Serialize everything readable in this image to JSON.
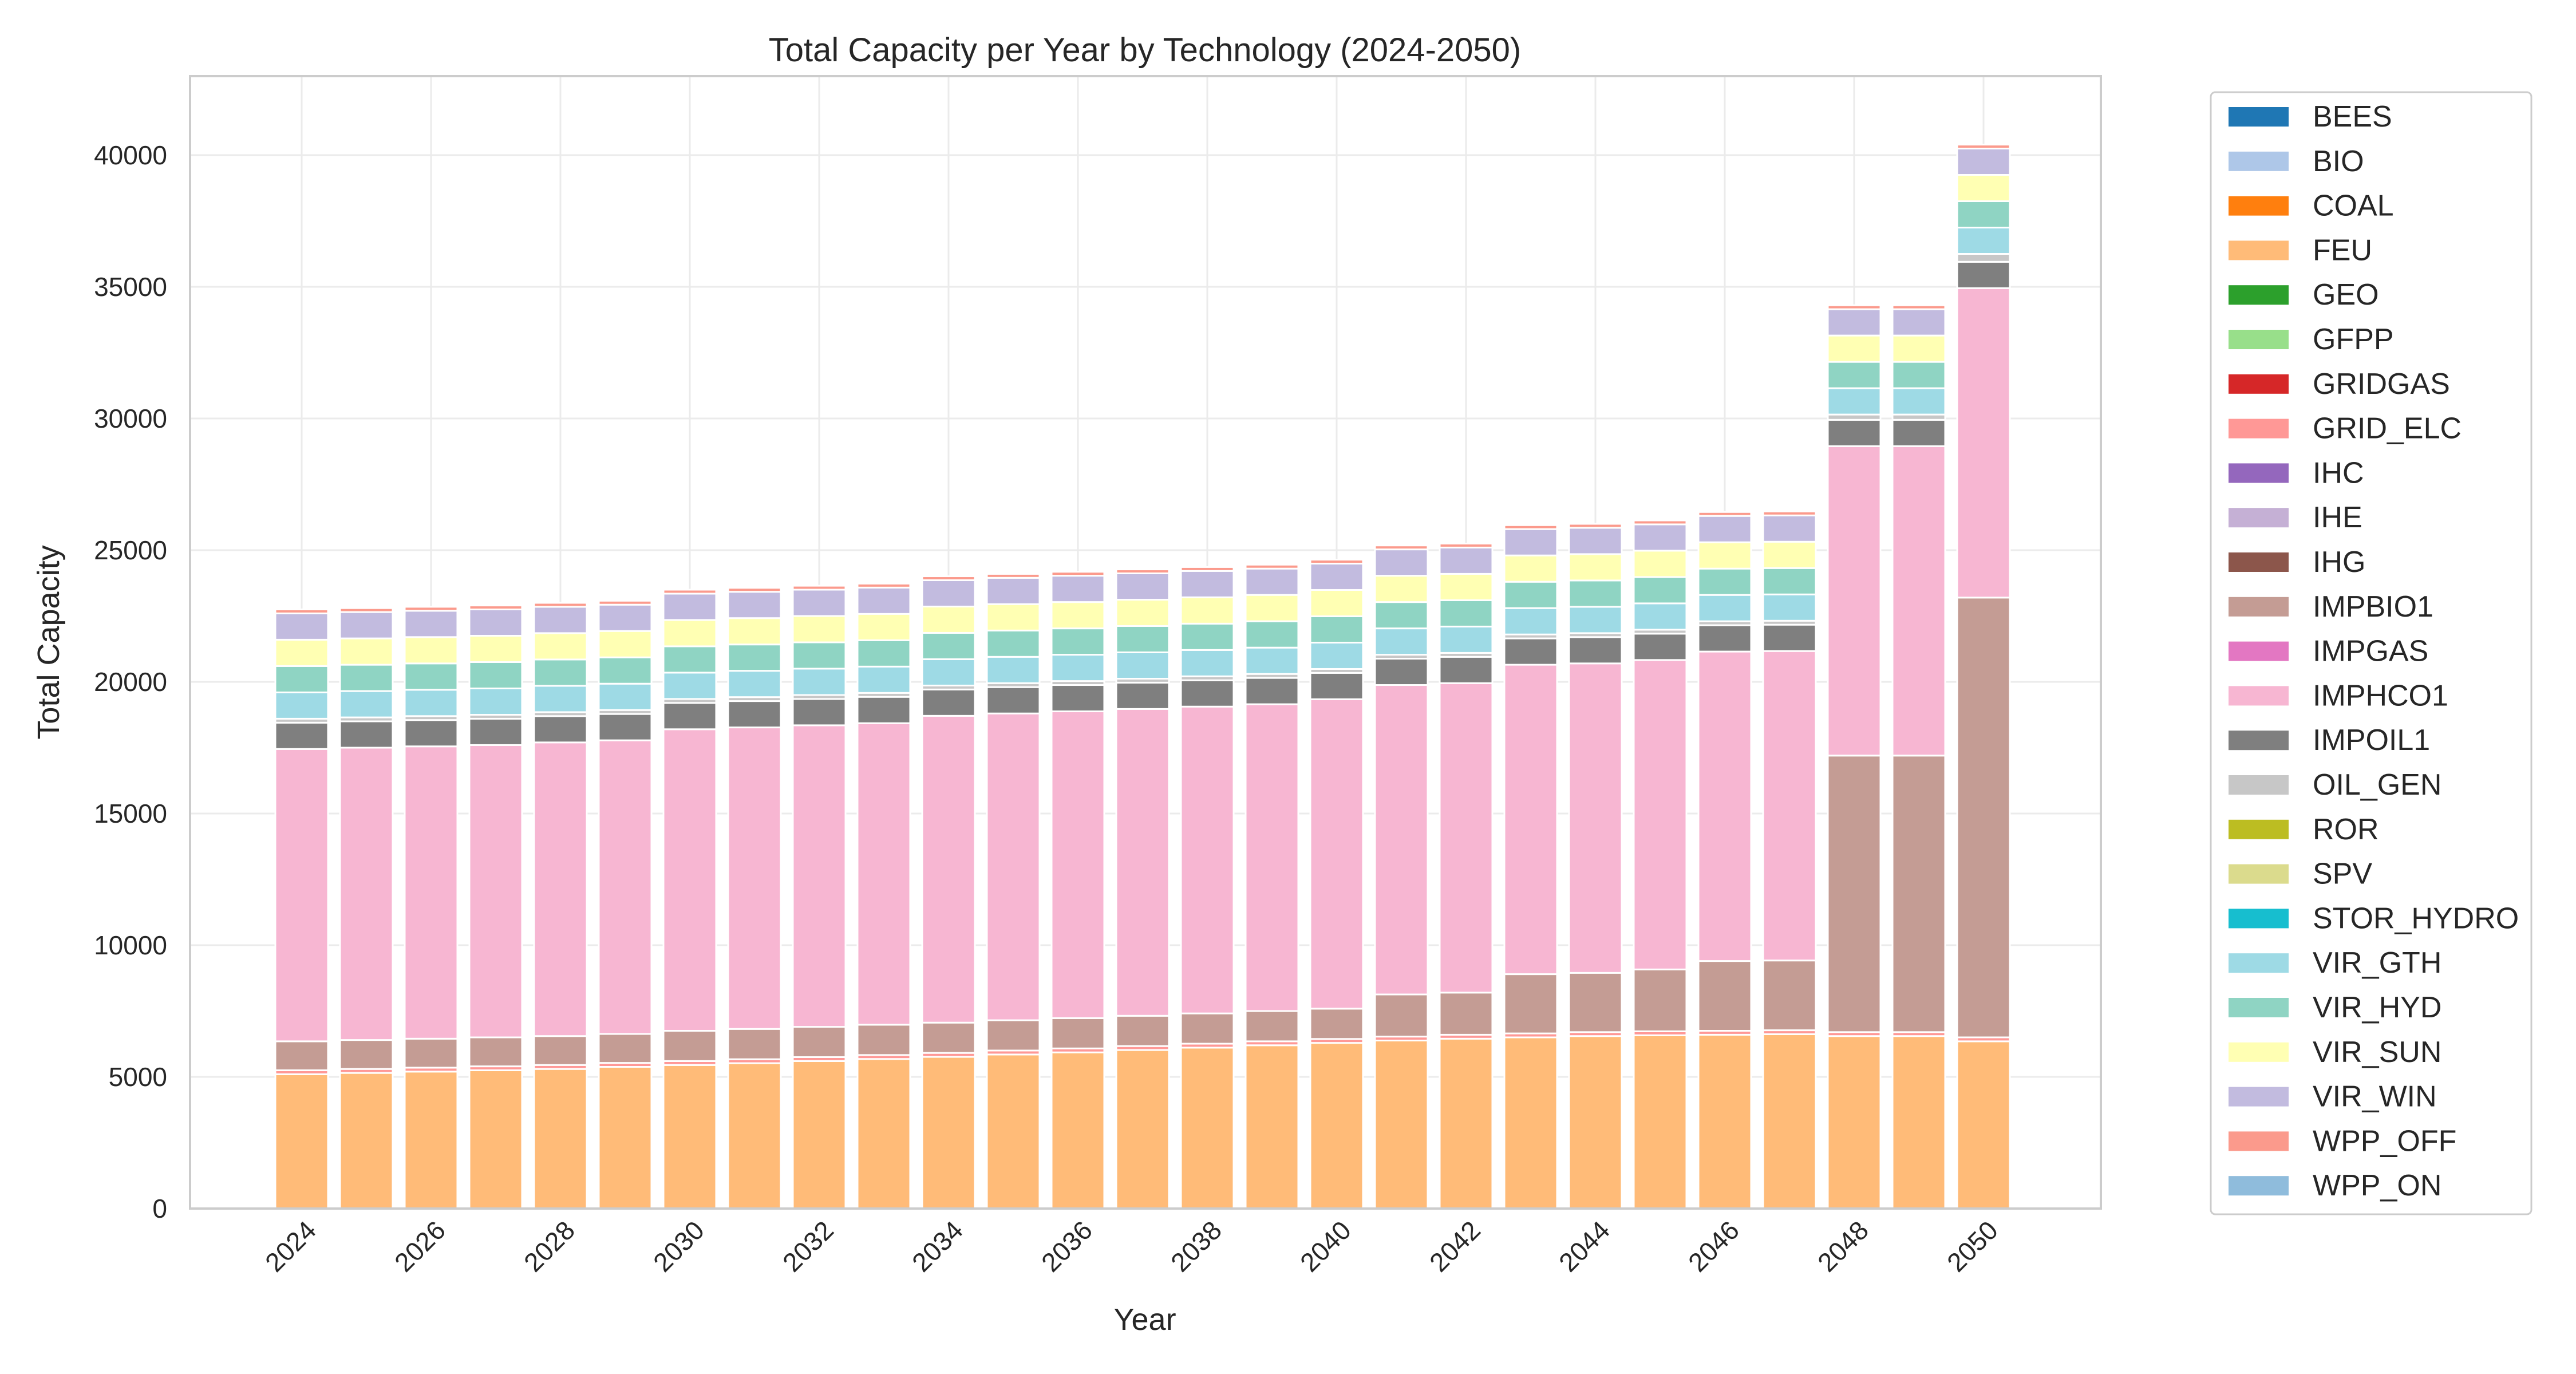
{
  "chart_data": {
    "type": "bar",
    "stacked": true,
    "title": "Total Capacity per Year by Technology (2024-2050)",
    "xlabel": "Year",
    "ylabel": "Total Capacity",
    "ylim": [
      0,
      43000
    ],
    "yticks": [
      0,
      5000,
      10000,
      15000,
      20000,
      25000,
      30000,
      35000,
      40000
    ],
    "xtick_labels": [
      "2024",
      "2026",
      "2028",
      "2030",
      "2032",
      "2034",
      "2036",
      "2038",
      "2040",
      "2042",
      "2044",
      "2046",
      "2048",
      "2050"
    ],
    "grid": true,
    "legend_position": "outside-right",
    "categories": [
      2024,
      2025,
      2026,
      2027,
      2028,
      2029,
      2030,
      2031,
      2032,
      2033,
      2034,
      2035,
      2036,
      2037,
      2038,
      2039,
      2040,
      2041,
      2042,
      2043,
      2044,
      2045,
      2046,
      2047,
      2048,
      2049,
      2050
    ],
    "series": [
      {
        "name": "BEES",
        "color": "#1f77b4",
        "values": [
          0,
          0,
          0,
          0,
          0,
          0,
          0,
          0,
          0,
          0,
          0,
          0,
          0,
          0,
          0,
          0,
          0,
          0,
          0,
          0,
          0,
          0,
          0,
          0,
          0,
          0,
          0
        ]
      },
      {
        "name": "BIO",
        "color": "#aec7e8",
        "values": [
          0,
          0,
          0,
          0,
          0,
          0,
          0,
          0,
          0,
          0,
          0,
          0,
          0,
          0,
          0,
          0,
          0,
          0,
          0,
          0,
          0,
          0,
          0,
          0,
          0,
          0,
          0
        ]
      },
      {
        "name": "COAL",
        "color": "#ff7f0e",
        "values": [
          0,
          0,
          0,
          0,
          0,
          0,
          0,
          0,
          0,
          0,
          0,
          0,
          0,
          0,
          0,
          0,
          0,
          0,
          0,
          0,
          0,
          0,
          0,
          0,
          0,
          0,
          0
        ]
      },
      {
        "name": "FEU",
        "color": "#ffbb78",
        "values": [
          5100,
          5150,
          5200,
          5250,
          5300,
          5380,
          5450,
          5520,
          5600,
          5680,
          5760,
          5850,
          5930,
          6020,
          6110,
          6200,
          6290,
          6380,
          6450,
          6500,
          6550,
          6580,
          6600,
          6620,
          6550,
          6550,
          6350
        ]
      },
      {
        "name": "GEO",
        "color": "#2ca02c",
        "values": [
          0,
          0,
          0,
          0,
          0,
          0,
          0,
          0,
          0,
          0,
          0,
          0,
          0,
          0,
          0,
          0,
          0,
          0,
          0,
          0,
          0,
          0,
          0,
          0,
          0,
          0,
          0
        ]
      },
      {
        "name": "GFPP",
        "color": "#98df8a",
        "values": [
          0,
          0,
          0,
          0,
          0,
          0,
          0,
          0,
          0,
          0,
          0,
          0,
          0,
          0,
          0,
          0,
          0,
          0,
          0,
          0,
          0,
          0,
          0,
          0,
          0,
          0,
          0
        ]
      },
      {
        "name": "GRIDGAS",
        "color": "#d62728",
        "values": [
          0,
          0,
          0,
          0,
          0,
          0,
          0,
          0,
          0,
          0,
          0,
          0,
          0,
          0,
          0,
          0,
          0,
          0,
          0,
          0,
          0,
          0,
          0,
          0,
          0,
          0,
          0
        ]
      },
      {
        "name": "GRID_ELC",
        "color": "#ff9896",
        "values": [
          150,
          150,
          150,
          150,
          150,
          150,
          150,
          150,
          150,
          150,
          150,
          150,
          150,
          150,
          150,
          150,
          150,
          150,
          150,
          150,
          150,
          150,
          150,
          150,
          150,
          150,
          150
        ]
      },
      {
        "name": "IHC",
        "color": "#9467bd",
        "values": [
          0,
          0,
          0,
          0,
          0,
          0,
          0,
          0,
          0,
          0,
          0,
          0,
          0,
          0,
          0,
          0,
          0,
          0,
          0,
          0,
          0,
          0,
          0,
          0,
          0,
          0,
          0
        ]
      },
      {
        "name": "IHE",
        "color": "#c5b0d5",
        "values": [
          0,
          0,
          0,
          0,
          0,
          0,
          0,
          0,
          0,
          0,
          0,
          0,
          0,
          0,
          0,
          0,
          0,
          0,
          0,
          0,
          0,
          0,
          0,
          0,
          0,
          0,
          0
        ]
      },
      {
        "name": "IHG",
        "color": "#8c564b",
        "values": [
          0,
          0,
          0,
          0,
          0,
          0,
          0,
          0,
          0,
          0,
          0,
          0,
          0,
          0,
          0,
          0,
          0,
          0,
          0,
          0,
          0,
          0,
          0,
          0,
          0,
          0,
          0
        ]
      },
      {
        "name": "IMPBIO1",
        "color": "#c49c94",
        "values": [
          1100,
          1100,
          1100,
          1100,
          1100,
          1100,
          1150,
          1150,
          1150,
          1150,
          1150,
          1150,
          1150,
          1150,
          1150,
          1150,
          1150,
          1600,
          1600,
          2250,
          2250,
          2350,
          2650,
          2650,
          10500,
          10500,
          16700
        ]
      },
      {
        "name": "IMPGAS",
        "color": "#e377c2",
        "values": [
          0,
          0,
          0,
          0,
          0,
          0,
          0,
          0,
          0,
          0,
          0,
          0,
          0,
          0,
          0,
          0,
          0,
          0,
          0,
          0,
          0,
          0,
          0,
          0,
          0,
          0,
          0
        ]
      },
      {
        "name": "IMPHCO1",
        "color": "#f7b6d2",
        "values": [
          11100,
          11100,
          11100,
          11100,
          11150,
          11150,
          11450,
          11450,
          11450,
          11450,
          11650,
          11650,
          11650,
          11650,
          11650,
          11650,
          11750,
          11750,
          11750,
          11750,
          11750,
          11750,
          11750,
          11750,
          11750,
          11750,
          11750
        ]
      },
      {
        "name": "IMPOIL1",
        "color": "#7f7f7f",
        "values": [
          1000,
          1000,
          1000,
          1000,
          1000,
          1000,
          1000,
          1000,
          1000,
          1000,
          1000,
          1000,
          1000,
          1000,
          1000,
          1000,
          1000,
          1000,
          1000,
          1000,
          1000,
          1000,
          1000,
          1000,
          1000,
          1000,
          1000
        ]
      },
      {
        "name": "OIL_GEN",
        "color": "#c7c7c7",
        "values": [
          150,
          150,
          150,
          150,
          150,
          150,
          150,
          150,
          150,
          150,
          150,
          150,
          150,
          150,
          150,
          150,
          150,
          150,
          150,
          150,
          150,
          150,
          150,
          150,
          200,
          200,
          300
        ]
      },
      {
        "name": "ROR",
        "color": "#bcbd22",
        "values": [
          0,
          0,
          0,
          0,
          0,
          0,
          0,
          0,
          0,
          0,
          0,
          0,
          0,
          0,
          0,
          0,
          0,
          0,
          0,
          0,
          0,
          0,
          0,
          0,
          0,
          0,
          0
        ]
      },
      {
        "name": "SPV",
        "color": "#dbdb8d",
        "values": [
          0,
          0,
          0,
          0,
          0,
          0,
          0,
          0,
          0,
          0,
          0,
          0,
          0,
          0,
          0,
          0,
          0,
          0,
          0,
          0,
          0,
          0,
          0,
          0,
          0,
          0,
          0
        ]
      },
      {
        "name": "STOR_HYDRO",
        "color": "#17becf",
        "values": [
          0,
          0,
          0,
          0,
          0,
          0,
          0,
          0,
          0,
          0,
          0,
          0,
          0,
          0,
          0,
          0,
          0,
          0,
          0,
          0,
          0,
          0,
          0,
          0,
          0,
          0,
          0
        ]
      },
      {
        "name": "VIR_GTH",
        "color": "#9edae5",
        "values": [
          1000,
          1000,
          1000,
          1000,
          1000,
          1000,
          1000,
          1000,
          1000,
          1000,
          1000,
          1000,
          1000,
          1000,
          1000,
          1000,
          1000,
          1000,
          1000,
          1000,
          1000,
          1000,
          1000,
          1000,
          1000,
          1000,
          1000
        ]
      },
      {
        "name": "VIR_HYD",
        "color": "#8fd4c3",
        "values": [
          1000,
          1000,
          1000,
          1000,
          1000,
          1000,
          1000,
          1000,
          1000,
          1000,
          1000,
          1000,
          1000,
          1000,
          1000,
          1000,
          1000,
          1000,
          1000,
          1000,
          1000,
          1000,
          1000,
          1000,
          1000,
          1000,
          1000
        ]
      },
      {
        "name": "VIR_SUN",
        "color": "#ffffb3",
        "values": [
          1000,
          1000,
          1000,
          1000,
          1000,
          1000,
          1000,
          1000,
          1000,
          1000,
          1000,
          1000,
          1000,
          1000,
          1000,
          1000,
          1000,
          1000,
          1000,
          1000,
          1000,
          1000,
          1000,
          1000,
          1000,
          1000,
          1000
        ]
      },
      {
        "name": "VIR_WIN",
        "color": "#c2bbdf",
        "values": [
          1000,
          1000,
          1000,
          1000,
          1000,
          1000,
          1000,
          1000,
          1000,
          1000,
          1000,
          1000,
          1000,
          1000,
          1000,
          1000,
          1000,
          1000,
          1000,
          1000,
          1000,
          1000,
          1000,
          1000,
          1000,
          1000,
          1000
        ]
      },
      {
        "name": "WPP_OFF",
        "color": "#fb9a8c",
        "values": [
          150,
          150,
          150,
          150,
          150,
          150,
          150,
          150,
          150,
          150,
          150,
          150,
          150,
          150,
          150,
          150,
          150,
          150,
          150,
          150,
          150,
          150,
          150,
          150,
          150,
          150,
          150
        ]
      },
      {
        "name": "WPP_ON",
        "color": "#8fbcdc",
        "values": [
          0,
          0,
          0,
          0,
          0,
          0,
          0,
          0,
          0,
          0,
          0,
          0,
          0,
          0,
          0,
          0,
          0,
          0,
          0,
          0,
          0,
          0,
          0,
          0,
          0,
          0,
          0
        ]
      }
    ]
  }
}
